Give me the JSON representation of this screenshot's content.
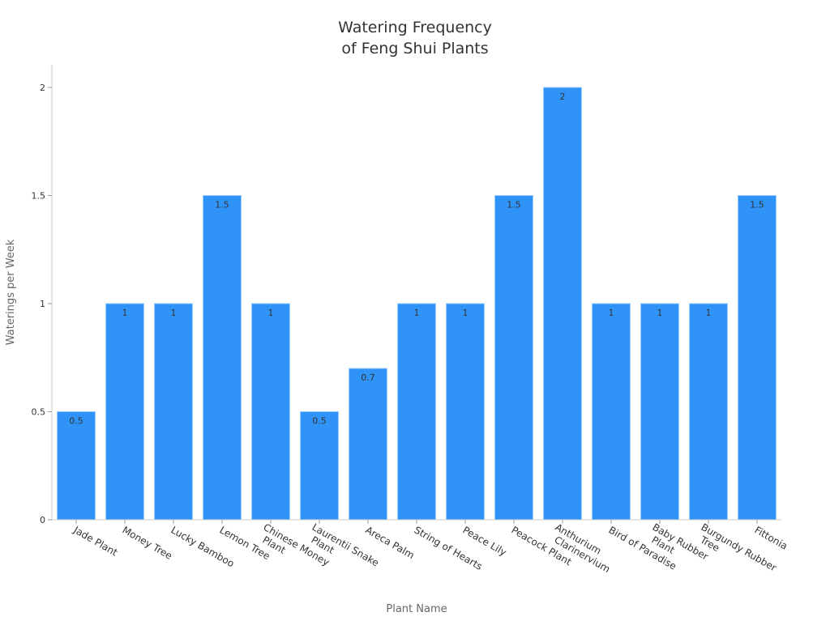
{
  "chart_data": {
    "type": "bar",
    "title": [
      "Watering Frequency",
      "of Feng Shui Plants"
    ],
    "xlabel": "Plant Name",
    "ylabel": "Waterings per Week",
    "ylim": [
      0,
      2
    ],
    "yticks": [
      0,
      0.5,
      1,
      1.5,
      2
    ],
    "ytick_labels": [
      "0",
      "0.5",
      "1",
      "1.5",
      "2"
    ],
    "grid": false,
    "bar_color": "#2f93f8",
    "categories": [
      [
        "Jade Plant"
      ],
      [
        "Money Tree"
      ],
      [
        "Lucky Bamboo"
      ],
      [
        "Lemon Tree"
      ],
      [
        "Chinese Money",
        "Plant"
      ],
      [
        "Laurentii Snake",
        "Plant"
      ],
      [
        "Areca Palm"
      ],
      [
        "String of Hearts"
      ],
      [
        "Peace Lily"
      ],
      [
        "Peacock Plant"
      ],
      [
        "Anthurium",
        "Clarinervium"
      ],
      [
        "Bird of Paradise"
      ],
      [
        "Baby Rubber",
        "Plant"
      ],
      [
        "Burgundy Rubber",
        "Tree"
      ],
      [
        "Fittonia"
      ]
    ],
    "values": [
      0.5,
      1,
      1,
      1.5,
      1,
      0.5,
      0.7,
      1,
      1,
      1.5,
      2,
      1,
      1,
      1,
      1.5
    ],
    "data_labels": [
      "0.5",
      "1",
      "1",
      "1.5",
      "1",
      "0.5",
      "0.7",
      "1",
      "1",
      "1.5",
      "2",
      "1",
      "1",
      "1",
      "1.5"
    ]
  }
}
